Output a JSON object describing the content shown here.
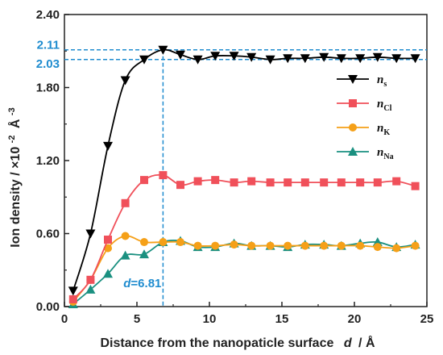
{
  "chart_data": {
    "type": "line",
    "xlabel": "Distance from the nanopaticle surface",
    "xlabel_symbol": "d",
    "xlabel_unit": "/ Å",
    "ylabel": "Ion density / ×10",
    "ylabel_exp": "-2",
    "ylabel_unit": "Å",
    "ylabel_unit_exp": "-3",
    "xlim": [
      0,
      25
    ],
    "ylim": [
      0,
      2.4
    ],
    "x_ticks": [
      0,
      5,
      10,
      15,
      20,
      25
    ],
    "x_tick_labels": [
      "0",
      "5",
      "10",
      "15",
      "20",
      "25"
    ],
    "y_ticks": [
      0,
      0.6,
      1.2,
      1.8,
      2.4
    ],
    "y_tick_labels": [
      "0.00",
      "0.60",
      "1.20",
      "1.80",
      "2.40"
    ],
    "legend_position": "right",
    "series": [
      {
        "name": "n",
        "name_sub": "s",
        "color": "#000000",
        "marker": "triangle-down",
        "x": [
          0.6,
          1.8,
          3.0,
          4.2,
          5.5,
          6.8,
          8.0,
          9.2,
          10.4,
          11.7,
          12.9,
          14.2,
          15.4,
          16.6,
          17.9,
          19.1,
          20.4,
          21.6,
          22.9,
          24.2
        ],
        "y": [
          0.13,
          0.6,
          1.32,
          1.86,
          2.03,
          2.11,
          2.07,
          2.03,
          2.06,
          2.06,
          2.05,
          2.03,
          2.04,
          2.04,
          2.05,
          2.04,
          2.04,
          2.05,
          2.04,
          2.04
        ]
      },
      {
        "name": "n",
        "name_sub": "Cl",
        "color": "#f0505a",
        "marker": "square",
        "x": [
          0.6,
          1.8,
          3.0,
          4.2,
          5.5,
          6.8,
          8.0,
          9.2,
          10.4,
          11.7,
          12.9,
          14.2,
          15.4,
          16.6,
          17.9,
          19.1,
          20.4,
          21.6,
          22.9,
          24.2
        ],
        "y": [
          0.06,
          0.22,
          0.55,
          0.85,
          1.04,
          1.08,
          1.0,
          1.03,
          1.04,
          1.02,
          1.03,
          1.02,
          1.02,
          1.02,
          1.02,
          1.02,
          1.02,
          1.02,
          1.03,
          0.99
        ]
      },
      {
        "name": "n",
        "name_sub": "K",
        "color": "#f5a018",
        "marker": "circle",
        "x": [
          0.6,
          1.8,
          3.0,
          4.2,
          5.5,
          6.8,
          8.0,
          9.2,
          10.4,
          11.7,
          12.9,
          14.2,
          15.4,
          16.6,
          17.9,
          19.1,
          20.4,
          21.6,
          22.9,
          24.2
        ],
        "y": [
          0.04,
          0.22,
          0.48,
          0.58,
          0.53,
          0.53,
          0.53,
          0.5,
          0.5,
          0.51,
          0.5,
          0.5,
          0.5,
          0.5,
          0.5,
          0.5,
          0.5,
          0.49,
          0.48,
          0.5
        ]
      },
      {
        "name": "n",
        "name_sub": "Na",
        "color": "#1a9080",
        "marker": "triangle-up",
        "x": [
          0.6,
          1.8,
          3.0,
          4.2,
          5.5,
          6.8,
          8.0,
          9.2,
          10.4,
          11.7,
          12.9,
          14.2,
          15.4,
          16.6,
          17.9,
          19.1,
          20.4,
          21.6,
          22.9,
          24.2
        ],
        "y": [
          0.02,
          0.14,
          0.27,
          0.42,
          0.43,
          0.53,
          0.54,
          0.49,
          0.49,
          0.52,
          0.5,
          0.5,
          0.49,
          0.51,
          0.51,
          0.5,
          0.52,
          0.53,
          0.49,
          0.51
        ]
      }
    ],
    "annotations": {
      "peak_x": 6.81,
      "peak_label_symbol": "d",
      "peak_label_value": "=6.81",
      "hline_values": [
        2.11,
        2.03
      ],
      "hline_labels": [
        "2.11",
        "2.03"
      ],
      "ref_color": "#1f8ccf"
    }
  }
}
